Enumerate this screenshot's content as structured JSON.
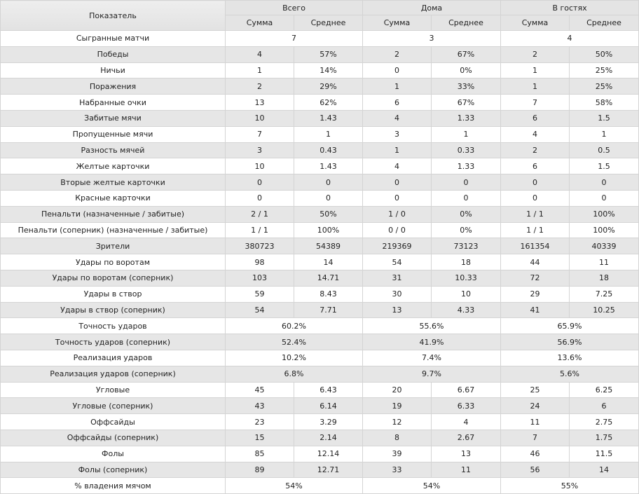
{
  "header": {
    "indicator_label": "Показатель",
    "groups": [
      "Всего",
      "Дома",
      "В гостях"
    ],
    "sub": [
      "Сумма",
      "Среднее"
    ]
  },
  "rows": [
    {
      "label": "Сыгранные матчи",
      "merged": [
        "7",
        "3",
        "4"
      ]
    },
    {
      "label": "Победы",
      "cells": [
        "4",
        "57%",
        "2",
        "67%",
        "2",
        "50%"
      ]
    },
    {
      "label": "Ничьи",
      "cells": [
        "1",
        "14%",
        "0",
        "0%",
        "1",
        "25%"
      ]
    },
    {
      "label": "Поражения",
      "cells": [
        "2",
        "29%",
        "1",
        "33%",
        "1",
        "25%"
      ]
    },
    {
      "label": "Набранные очки",
      "cells": [
        "13",
        "62%",
        "6",
        "67%",
        "7",
        "58%"
      ]
    },
    {
      "label": "Забитые мячи",
      "cells": [
        "10",
        "1.43",
        "4",
        "1.33",
        "6",
        "1.5"
      ]
    },
    {
      "label": "Пропущенные мячи",
      "cells": [
        "7",
        "1",
        "3",
        "1",
        "4",
        "1"
      ]
    },
    {
      "label": "Разность мячей",
      "cells": [
        "3",
        "0.43",
        "1",
        "0.33",
        "2",
        "0.5"
      ]
    },
    {
      "label": "Желтые карточки",
      "cells": [
        "10",
        "1.43",
        "4",
        "1.33",
        "6",
        "1.5"
      ]
    },
    {
      "label": "Вторые желтые карточки",
      "cells": [
        "0",
        "0",
        "0",
        "0",
        "0",
        "0"
      ]
    },
    {
      "label": "Красные карточки",
      "cells": [
        "0",
        "0",
        "0",
        "0",
        "0",
        "0"
      ]
    },
    {
      "label": "Пенальти (назначенные / забитые)",
      "cells": [
        "2 / 1",
        "50%",
        "1 / 0",
        "0%",
        "1 / 1",
        "100%"
      ]
    },
    {
      "label": "Пенальти (соперник) (назначенные / забитые)",
      "cells": [
        "1 / 1",
        "100%",
        "0 / 0",
        "0%",
        "1 / 1",
        "100%"
      ]
    },
    {
      "label": "Зрители",
      "cells": [
        "380723",
        "54389",
        "219369",
        "73123",
        "161354",
        "40339"
      ]
    },
    {
      "label": "Удары по воротам",
      "cells": [
        "98",
        "14",
        "54",
        "18",
        "44",
        "11"
      ]
    },
    {
      "label": "Удары по воротам (соперник)",
      "cells": [
        "103",
        "14.71",
        "31",
        "10.33",
        "72",
        "18"
      ]
    },
    {
      "label": "Удары в створ",
      "cells": [
        "59",
        "8.43",
        "30",
        "10",
        "29",
        "7.25"
      ]
    },
    {
      "label": "Удары в створ (соперник)",
      "cells": [
        "54",
        "7.71",
        "13",
        "4.33",
        "41",
        "10.25"
      ]
    },
    {
      "label": "Точность ударов",
      "merged": [
        "60.2%",
        "55.6%",
        "65.9%"
      ]
    },
    {
      "label": "Точность ударов (соперник)",
      "merged": [
        "52.4%",
        "41.9%",
        "56.9%"
      ]
    },
    {
      "label": "Реализация ударов",
      "merged": [
        "10.2%",
        "7.4%",
        "13.6%"
      ]
    },
    {
      "label": "Реализация ударов (соперник)",
      "merged": [
        "6.8%",
        "9.7%",
        "5.6%"
      ]
    },
    {
      "label": "Угловые",
      "cells": [
        "45",
        "6.43",
        "20",
        "6.67",
        "25",
        "6.25"
      ]
    },
    {
      "label": "Угловые (соперник)",
      "cells": [
        "43",
        "6.14",
        "19",
        "6.33",
        "24",
        "6"
      ]
    },
    {
      "label": "Оффсайды",
      "cells": [
        "23",
        "3.29",
        "12",
        "4",
        "11",
        "2.75"
      ]
    },
    {
      "label": "Оффсайды (соперник)",
      "cells": [
        "15",
        "2.14",
        "8",
        "2.67",
        "7",
        "1.75"
      ]
    },
    {
      "label": "Фолы",
      "cells": [
        "85",
        "12.14",
        "39",
        "13",
        "46",
        "11.5"
      ]
    },
    {
      "label": "Фолы (соперник)",
      "cells": [
        "89",
        "12.71",
        "33",
        "11",
        "56",
        "14"
      ]
    },
    {
      "label": "% владения мячом",
      "merged": [
        "54%",
        "54%",
        "55%"
      ]
    }
  ]
}
